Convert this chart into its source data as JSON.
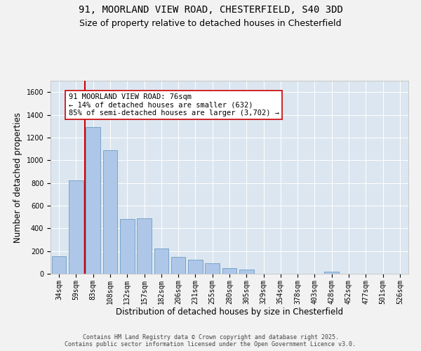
{
  "title_line1": "91, MOORLAND VIEW ROAD, CHESTERFIELD, S40 3DD",
  "title_line2": "Size of property relative to detached houses in Chesterfield",
  "xlabel": "Distribution of detached houses by size in Chesterfield",
  "ylabel": "Number of detached properties",
  "categories": [
    "34sqm",
    "59sqm",
    "83sqm",
    "108sqm",
    "132sqm",
    "157sqm",
    "182sqm",
    "206sqm",
    "231sqm",
    "255sqm",
    "280sqm",
    "305sqm",
    "329sqm",
    "354sqm",
    "378sqm",
    "403sqm",
    "428sqm",
    "452sqm",
    "477sqm",
    "501sqm",
    "526sqm"
  ],
  "values": [
    155,
    820,
    1290,
    1090,
    480,
    490,
    220,
    150,
    125,
    90,
    50,
    35,
    0,
    0,
    0,
    0,
    20,
    0,
    0,
    0,
    0
  ],
  "bar_color": "#aec6e8",
  "bar_edge_color": "#6b9dc2",
  "vline_x": 1.5,
  "vline_color": "#cc0000",
  "annotation_text": "91 MOORLAND VIEW ROAD: 76sqm\n← 14% of detached houses are smaller (632)\n85% of semi-detached houses are larger (3,702) →",
  "annotation_box_color": "#ffffff",
  "annotation_box_edge_color": "#cc0000",
  "ylim": [
    0,
    1700
  ],
  "yticks": [
    0,
    200,
    400,
    600,
    800,
    1000,
    1200,
    1400,
    1600
  ],
  "bg_color": "#dce6f0",
  "fig_bg_color": "#f2f2f2",
  "footer_text": "Contains HM Land Registry data © Crown copyright and database right 2025.\nContains public sector information licensed under the Open Government Licence v3.0.",
  "title_fontsize": 10,
  "subtitle_fontsize": 9,
  "axis_label_fontsize": 8.5,
  "tick_fontsize": 7,
  "annotation_fontsize": 7.5,
  "footer_fontsize": 6
}
